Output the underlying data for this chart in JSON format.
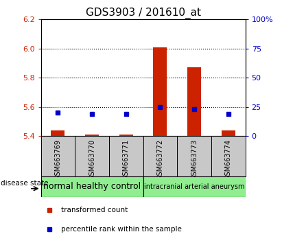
{
  "title": "GDS3903 / 201610_at",
  "samples": [
    "GSM663769",
    "GSM663770",
    "GSM663771",
    "GSM663772",
    "GSM663773",
    "GSM663774"
  ],
  "transformed_count": [
    5.44,
    5.41,
    5.41,
    6.01,
    5.87,
    5.44
  ],
  "percentile_rank": [
    20,
    19,
    19,
    25,
    23,
    19
  ],
  "ylim_left": [
    5.4,
    6.2
  ],
  "ylim_right": [
    0,
    100
  ],
  "yticks_left": [
    5.4,
    5.6,
    5.8,
    6.0,
    6.2
  ],
  "yticks_right": [
    0,
    25,
    50,
    75,
    100
  ],
  "ytick_labels_right": [
    "0",
    "25",
    "50",
    "75",
    "100%"
  ],
  "bar_color": "#cc2200",
  "dot_color": "#0000cc",
  "bar_width": 0.4,
  "group1_label": "normal healthy control",
  "group2_label": "intracranial arterial aneurysm",
  "disease_state_label": "disease state",
  "legend_items": [
    {
      "label": "transformed count",
      "color": "#cc2200"
    },
    {
      "label": "percentile rank within the sample",
      "color": "#0000cc"
    }
  ],
  "tick_area_color": "#c8c8c8",
  "group_box_color": "#90ee90",
  "title_fontsize": 11,
  "tick_fontsize": 8,
  "sample_fontsize": 7,
  "group_fontsize1": 9,
  "group_fontsize2": 7
}
